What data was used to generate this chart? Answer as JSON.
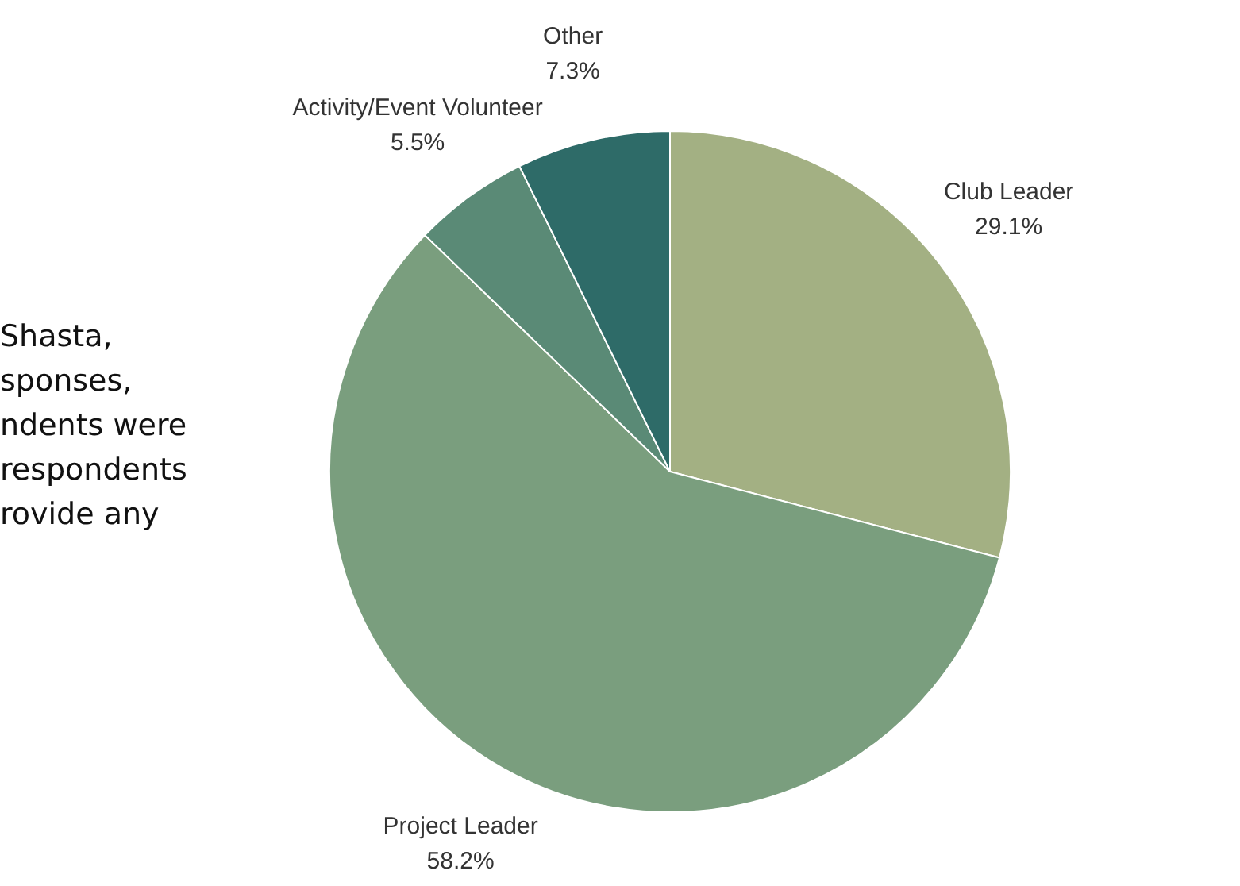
{
  "chart_data": {
    "type": "pie",
    "categories": [
      "Club Leader",
      "Project Leader",
      "Activity/Event Volunteer",
      "Other"
    ],
    "values": [
      29.1,
      58.2,
      5.5,
      7.3
    ],
    "value_labels": [
      "29.1%",
      "58.2%",
      "5.5%",
      "7.3%"
    ],
    "colors": [
      "#a3b083",
      "#7a9e7e",
      "#5a8a76",
      "#2e6b68"
    ],
    "annotations": [
      "Shasta,",
      "sponses,",
      "ndents were",
      "respondents",
      "rovide any"
    ],
    "legend": false
  }
}
